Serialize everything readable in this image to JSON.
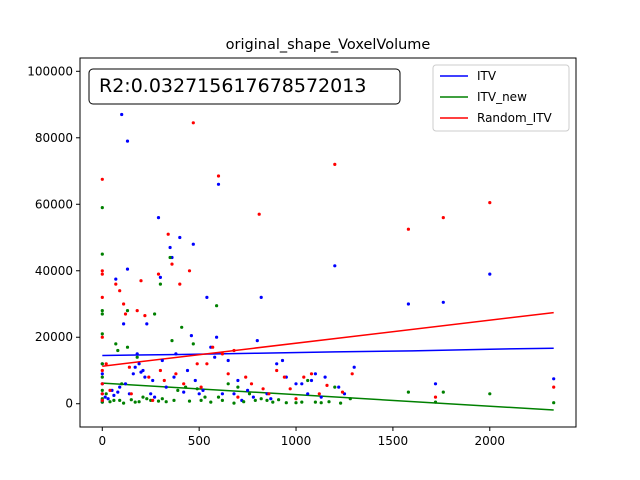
{
  "chart_data": {
    "type": "scatter",
    "title": "original_shape_VoxelVolume",
    "xlabel": "",
    "ylabel": "",
    "xlim": [
      -115,
      2445
    ],
    "ylim": [
      -7000,
      104000
    ],
    "xticks": [
      0,
      500,
      1000,
      1500,
      2000
    ],
    "yticks": [
      0,
      20000,
      40000,
      60000,
      80000,
      100000
    ],
    "grid": false,
    "legend_position": "top-right",
    "annotation": "R2:0.032715617678572013",
    "series": [
      {
        "name": "ITV",
        "color": "#0000ff",
        "points": [
          [
            0,
            1000
          ],
          [
            0,
            3000
          ],
          [
            0,
            6000
          ],
          [
            0,
            9000
          ],
          [
            0,
            12000
          ],
          [
            0,
            500
          ],
          [
            15,
            2000
          ],
          [
            30,
            1500
          ],
          [
            50,
            4000
          ],
          [
            60,
            2500
          ],
          [
            70,
            37500
          ],
          [
            80,
            3500
          ],
          [
            90,
            5000
          ],
          [
            100,
            87000
          ],
          [
            110,
            24000
          ],
          [
            120,
            6000
          ],
          [
            130,
            79000
          ],
          [
            130,
            40500
          ],
          [
            140,
            3000
          ],
          [
            160,
            9000
          ],
          [
            170,
            11000
          ],
          [
            180,
            15000
          ],
          [
            190,
            12000
          ],
          [
            200,
            9500
          ],
          [
            210,
            10000
          ],
          [
            220,
            8000
          ],
          [
            230,
            24000
          ],
          [
            250,
            3000
          ],
          [
            260,
            7000
          ],
          [
            270,
            2000
          ],
          [
            290,
            56000
          ],
          [
            300,
            38000
          ],
          [
            310,
            13000
          ],
          [
            330,
            5000
          ],
          [
            350,
            47000
          ],
          [
            360,
            44000
          ],
          [
            370,
            8000
          ],
          [
            380,
            15000
          ],
          [
            400,
            50000
          ],
          [
            420,
            3500
          ],
          [
            440,
            10000
          ],
          [
            460,
            20500
          ],
          [
            470,
            48000
          ],
          [
            480,
            7000
          ],
          [
            500,
            3000
          ],
          [
            520,
            4000
          ],
          [
            540,
            32000
          ],
          [
            560,
            17000
          ],
          [
            580,
            14000
          ],
          [
            590,
            20000
          ],
          [
            600,
            66000
          ],
          [
            620,
            3000
          ],
          [
            650,
            13000
          ],
          [
            680,
            3000
          ],
          [
            700,
            7000
          ],
          [
            720,
            1000
          ],
          [
            750,
            4000
          ],
          [
            780,
            2000
          ],
          [
            800,
            19000
          ],
          [
            820,
            32000
          ],
          [
            850,
            3000
          ],
          [
            870,
            1500
          ],
          [
            900,
            12000
          ],
          [
            930,
            13000
          ],
          [
            950,
            8000
          ],
          [
            1000,
            6000
          ],
          [
            1030,
            6000
          ],
          [
            1060,
            3000
          ],
          [
            1080,
            7000
          ],
          [
            1100,
            9000
          ],
          [
            1130,
            2000
          ],
          [
            1150,
            8000
          ],
          [
            1200,
            41500
          ],
          [
            1220,
            5000
          ],
          [
            1250,
            3000
          ],
          [
            1300,
            11000
          ],
          [
            1580,
            30000
          ],
          [
            1720,
            6000
          ],
          [
            1760,
            30500
          ],
          [
            2000,
            39000
          ],
          [
            2330,
            7500
          ]
        ]
      },
      {
        "name": "ITV_new",
        "color": "#008000",
        "points": [
          [
            0,
            59000
          ],
          [
            0,
            45000
          ],
          [
            0,
            28000
          ],
          [
            0,
            27000
          ],
          [
            0,
            21000
          ],
          [
            0,
            12000
          ],
          [
            0,
            8000
          ],
          [
            0,
            4000
          ],
          [
            0,
            1500
          ],
          [
            0,
            500
          ],
          [
            20,
            3000
          ],
          [
            40,
            600
          ],
          [
            60,
            1000
          ],
          [
            70,
            18000
          ],
          [
            80,
            16000
          ],
          [
            90,
            1000
          ],
          [
            100,
            6000
          ],
          [
            110,
            200
          ],
          [
            130,
            28000
          ],
          [
            130,
            17000
          ],
          [
            150,
            1200
          ],
          [
            170,
            500
          ],
          [
            180,
            14000
          ],
          [
            190,
            600
          ],
          [
            210,
            2000
          ],
          [
            230,
            1500
          ],
          [
            250,
            1000
          ],
          [
            270,
            27000
          ],
          [
            290,
            800
          ],
          [
            300,
            36000
          ],
          [
            310,
            1500
          ],
          [
            330,
            600
          ],
          [
            350,
            44000
          ],
          [
            360,
            19000
          ],
          [
            370,
            1000
          ],
          [
            390,
            4000
          ],
          [
            410,
            23000
          ],
          [
            430,
            5000
          ],
          [
            450,
            800
          ],
          [
            470,
            18000
          ],
          [
            490,
            4500
          ],
          [
            510,
            1000
          ],
          [
            530,
            2000
          ],
          [
            560,
            500
          ],
          [
            590,
            29500
          ],
          [
            600,
            2000
          ],
          [
            620,
            1000
          ],
          [
            650,
            6000
          ],
          [
            680,
            200
          ],
          [
            700,
            5000
          ],
          [
            730,
            600
          ],
          [
            760,
            3000
          ],
          [
            790,
            1000
          ],
          [
            820,
            1500
          ],
          [
            850,
            1000
          ],
          [
            880,
            500
          ],
          [
            910,
            1200
          ],
          [
            950,
            300
          ],
          [
            1000,
            300
          ],
          [
            1030,
            500
          ],
          [
            1060,
            7000
          ],
          [
            1100,
            500
          ],
          [
            1130,
            300
          ],
          [
            1170,
            600
          ],
          [
            1200,
            5000
          ],
          [
            1230,
            200
          ],
          [
            1280,
            1500
          ],
          [
            1580,
            3500
          ],
          [
            1720,
            500
          ],
          [
            1760,
            3500
          ],
          [
            2000,
            3000
          ],
          [
            2330,
            300
          ]
        ]
      },
      {
        "name": "Random_ITV",
        "color": "#ff0000",
        "points": [
          [
            0,
            67500
          ],
          [
            0,
            40000
          ],
          [
            0,
            39000
          ],
          [
            0,
            32000
          ],
          [
            0,
            20000
          ],
          [
            0,
            10000
          ],
          [
            0,
            6000
          ],
          [
            0,
            3000
          ],
          [
            0,
            1000
          ],
          [
            20,
            12000
          ],
          [
            40,
            4000
          ],
          [
            70,
            36000
          ],
          [
            90,
            34000
          ],
          [
            110,
            30000
          ],
          [
            120,
            27000
          ],
          [
            140,
            11000
          ],
          [
            150,
            3000
          ],
          [
            180,
            28000
          ],
          [
            200,
            37000
          ],
          [
            220,
            26500
          ],
          [
            240,
            8000
          ],
          [
            260,
            1000
          ],
          [
            290,
            39000
          ],
          [
            300,
            10000
          ],
          [
            320,
            7000
          ],
          [
            340,
            51000
          ],
          [
            360,
            42000
          ],
          [
            380,
            9000
          ],
          [
            400,
            36000
          ],
          [
            420,
            6000
          ],
          [
            450,
            40000
          ],
          [
            470,
            84500
          ],
          [
            490,
            12000
          ],
          [
            510,
            5000
          ],
          [
            540,
            12000
          ],
          [
            570,
            17000
          ],
          [
            600,
            68500
          ],
          [
            620,
            15000
          ],
          [
            650,
            9000
          ],
          [
            680,
            16000
          ],
          [
            700,
            2000
          ],
          [
            740,
            8000
          ],
          [
            770,
            6000
          ],
          [
            810,
            57000
          ],
          [
            830,
            4500
          ],
          [
            860,
            3000
          ],
          [
            900,
            10000
          ],
          [
            940,
            8000
          ],
          [
            970,
            4500
          ],
          [
            1000,
            1500
          ],
          [
            1040,
            8000
          ],
          [
            1080,
            9000
          ],
          [
            1120,
            3000
          ],
          [
            1160,
            5500
          ],
          [
            1200,
            72000
          ],
          [
            1240,
            3500
          ],
          [
            1290,
            9000
          ],
          [
            1580,
            52500
          ],
          [
            1720,
            2000
          ],
          [
            1760,
            56000
          ],
          [
            2000,
            60500
          ],
          [
            2330,
            5000
          ]
        ]
      }
    ],
    "trend_lines": [
      {
        "name": "ITV",
        "color": "#0000ff",
        "x": [
          0,
          400,
          800,
          1200,
          1600,
          2000,
          2330
        ],
        "y": [
          14500,
          14800,
          15200,
          15600,
          15900,
          16400,
          16700
        ]
      },
      {
        "name": "ITV_new",
        "color": "#008000",
        "x": [
          0,
          2330
        ],
        "y": [
          6200,
          -1900
        ]
      },
      {
        "name": "Random_ITV",
        "color": "#ff0000",
        "x": [
          0,
          2330
        ],
        "y": [
          11300,
          27400
        ]
      }
    ]
  }
}
